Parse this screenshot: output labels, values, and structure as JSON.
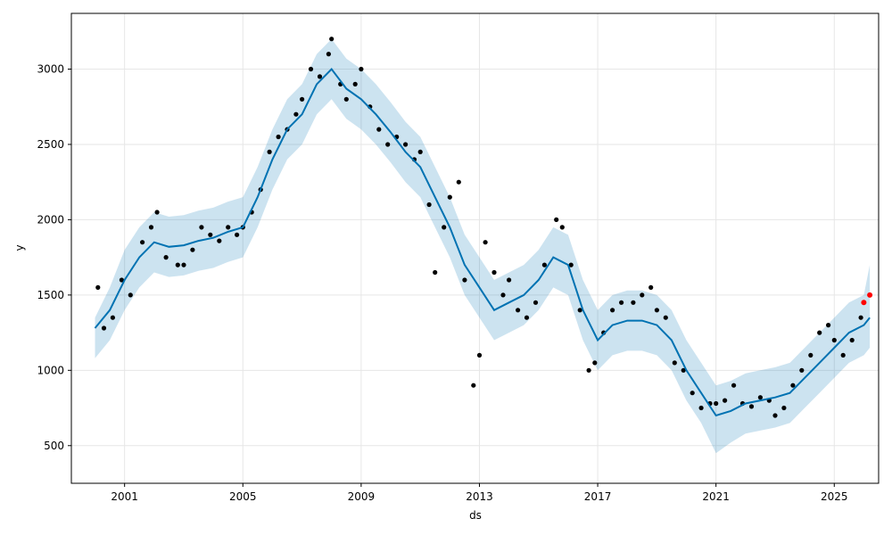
{
  "chart_data": {
    "type": "line",
    "title": "",
    "xlabel": "ds",
    "ylabel": "y",
    "xlim": [
      1999.2,
      2026.5
    ],
    "ylim": [
      250,
      3370
    ],
    "grid": true,
    "legend": "none",
    "xticks": [
      2001,
      2005,
      2009,
      2013,
      2017,
      2021,
      2025
    ],
    "xtick_labels": [
      "2001",
      "2005",
      "2009",
      "2013",
      "2017",
      "2021",
      "2025"
    ],
    "yticks": [
      500,
      1000,
      1500,
      2000,
      2500,
      3000
    ],
    "ytick_labels": [
      "500",
      "1000",
      "1500",
      "2000",
      "2500",
      "3000"
    ],
    "colors": {
      "observed": "#000000",
      "forecast_line": "#0072B2",
      "interval_band": "#0072B2",
      "recent_highlight": "#ff0000",
      "grid": "#e6e6e6"
    },
    "observed": {
      "x": [
        2000.1,
        2000.3,
        2000.6,
        2000.9,
        2001.2,
        2001.6,
        2001.9,
        2002.1,
        2002.4,
        2002.8,
        2003.0,
        2003.3,
        2003.6,
        2003.9,
        2004.2,
        2004.5,
        2004.8,
        2005.0,
        2005.3,
        2005.6,
        2005.9,
        2006.2,
        2006.5,
        2006.8,
        2007.0,
        2007.3,
        2007.6,
        2007.9,
        2008.0,
        2008.3,
        2008.5,
        2008.8,
        2009.0,
        2009.3,
        2009.6,
        2009.9,
        2010.2,
        2010.5,
        2010.8,
        2011.0,
        2011.3,
        2011.5,
        2011.8,
        2012.0,
        2012.3,
        2012.5,
        2012.8,
        2013.0,
        2013.2,
        2013.5,
        2013.8,
        2014.0,
        2014.3,
        2014.6,
        2014.9,
        2015.2,
        2015.6,
        2015.8,
        2016.1,
        2016.4,
        2016.7,
        2016.9,
        2017.2,
        2017.5,
        2017.8,
        2018.2,
        2018.5,
        2018.8,
        2019.0,
        2019.3,
        2019.6,
        2019.9,
        2020.2,
        2020.5,
        2020.8,
        2021.0,
        2021.3,
        2021.6,
        2021.9,
        2022.2,
        2022.5,
        2022.8,
        2023.0,
        2023.3,
        2023.6,
        2023.9,
        2024.2,
        2024.5,
        2024.8,
        2025.0,
        2025.3,
        2025.6,
        2025.9,
        2026.0,
        2026.2
      ],
      "y": [
        1550,
        1280,
        1350,
        1600,
        1500,
        1850,
        1950,
        2050,
        1750,
        1700,
        1700,
        1800,
        1950,
        1900,
        1860,
        1950,
        1900,
        1950,
        2050,
        2200,
        2450,
        2550,
        2600,
        2700,
        2800,
        3000,
        2950,
        3100,
        3200,
        2900,
        2800,
        2900,
        3000,
        2750,
        2600,
        2500,
        2550,
        2500,
        2400,
        2450,
        2100,
        1650,
        1950,
        2150,
        2250,
        1600,
        900,
        1100,
        1850,
        1650,
        1500,
        1600,
        1400,
        1350,
        1450,
        1700,
        2000,
        1950,
        1700,
        1400,
        1000,
        1050,
        1250,
        1400,
        1450,
        1450,
        1500,
        1550,
        1400,
        1350,
        1050,
        1000,
        850,
        750,
        780,
        780,
        800,
        900,
        780,
        760,
        820,
        800,
        700,
        750,
        900,
        1000,
        1100,
        1250,
        1300,
        1200,
        1100,
        1200,
        1350,
        1450,
        1500
      ]
    },
    "forecast": {
      "x": [
        2000.0,
        2000.5,
        2001.0,
        2001.5,
        2002.0,
        2002.5,
        2003.0,
        2003.5,
        2004.0,
        2004.5,
        2005.0,
        2005.5,
        2006.0,
        2006.5,
        2007.0,
        2007.5,
        2008.0,
        2008.5,
        2009.0,
        2009.5,
        2010.0,
        2010.5,
        2011.0,
        2011.5,
        2012.0,
        2012.5,
        2013.0,
        2013.5,
        2014.0,
        2014.5,
        2015.0,
        2015.5,
        2016.0,
        2016.5,
        2017.0,
        2017.5,
        2018.0,
        2018.5,
        2019.0,
        2019.5,
        2020.0,
        2020.5,
        2021.0,
        2021.5,
        2022.0,
        2022.5,
        2023.0,
        2023.5,
        2024.0,
        2024.5,
        2025.0,
        2025.5,
        2026.0,
        2026.2
      ],
      "y": [
        1280,
        1400,
        1600,
        1750,
        1850,
        1820,
        1830,
        1860,
        1880,
        1920,
        1950,
        2150,
        2400,
        2600,
        2700,
        2900,
        3000,
        2870,
        2800,
        2700,
        2580,
        2450,
        2350,
        2150,
        1950,
        1700,
        1550,
        1400,
        1450,
        1500,
        1600,
        1750,
        1700,
        1400,
        1200,
        1300,
        1330,
        1330,
        1300,
        1200,
        1000,
        850,
        700,
        730,
        780,
        800,
        820,
        850,
        950,
        1050,
        1150,
        1250,
        1300,
        1350
      ],
      "upper": [
        1350,
        1550,
        1800,
        1950,
        2050,
        2020,
        2030,
        2060,
        2080,
        2120,
        2150,
        2350,
        2600,
        2800,
        2900,
        3100,
        3200,
        3070,
        3000,
        2900,
        2780,
        2650,
        2550,
        2350,
        2150,
        1900,
        1750,
        1600,
        1650,
        1700,
        1800,
        1950,
        1900,
        1600,
        1400,
        1500,
        1530,
        1530,
        1500,
        1400,
        1200,
        1050,
        900,
        930,
        980,
        1000,
        1020,
        1050,
        1150,
        1250,
        1350,
        1450,
        1500,
        1700
      ],
      "lower": [
        1080,
        1200,
        1400,
        1550,
        1650,
        1620,
        1630,
        1660,
        1680,
        1720,
        1750,
        1950,
        2200,
        2400,
        2500,
        2700,
        2800,
        2670,
        2600,
        2500,
        2380,
        2250,
        2150,
        1950,
        1750,
        1500,
        1350,
        1200,
        1250,
        1300,
        1400,
        1550,
        1500,
        1200,
        1000,
        1100,
        1130,
        1130,
        1100,
        1000,
        800,
        650,
        450,
        520,
        580,
        600,
        620,
        650,
        750,
        850,
        950,
        1050,
        1100,
        1150
      ]
    }
  }
}
